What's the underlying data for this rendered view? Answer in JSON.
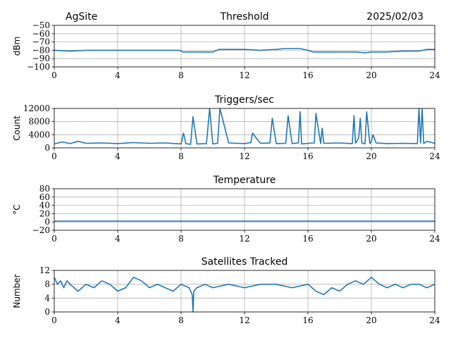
{
  "header": {
    "site": "AgSite",
    "date": "2025/02/03"
  },
  "colors": {
    "series": "#1f77b4",
    "grid": "#b0b0b0"
  },
  "chart_data": [
    {
      "type": "line",
      "title": "Threshold",
      "ylabel": "dBm",
      "xlim": [
        0,
        24
      ],
      "ylim": [
        -100,
        -50
      ],
      "xticks": [
        0,
        4,
        8,
        12,
        16,
        20,
        24
      ],
      "yticks": [
        -100,
        -90,
        -80,
        -70,
        -60,
        -50
      ],
      "grid": true,
      "series": [
        {
          "x": [
            0,
            1,
            2,
            3,
            4,
            5,
            6,
            7,
            7.9,
            8.1,
            9,
            10,
            10.4,
            11,
            12,
            13,
            14,
            14.5,
            15,
            15.5,
            16,
            16.3,
            17,
            18,
            19,
            19.6,
            20,
            21,
            22,
            23,
            23.5,
            24
          ],
          "y": [
            -80,
            -81,
            -80,
            -80,
            -80,
            -80,
            -80,
            -80,
            -80,
            -82,
            -82,
            -82,
            -79,
            -79,
            -79,
            -80,
            -79,
            -78,
            -78,
            -78,
            -80,
            -82,
            -82,
            -82,
            -82,
            -83,
            -82,
            -82,
            -81,
            -81,
            -79,
            -79
          ]
        }
      ]
    },
    {
      "type": "line",
      "title": "Triggers/sec",
      "ylabel": "Count",
      "xlim": [
        0,
        24
      ],
      "ylim": [
        0,
        12000
      ],
      "xticks": [
        0,
        4,
        8,
        12,
        16,
        20,
        24
      ],
      "yticks": [
        0,
        4000,
        8000,
        12000
      ],
      "grid": true,
      "series": [
        {
          "x": [
            0,
            0.5,
            1,
            1.5,
            2,
            3,
            4,
            5,
            6,
            7,
            8,
            8.15,
            8.3,
            8.6,
            8.75,
            9,
            9.6,
            9.8,
            10,
            10.3,
            10.45,
            11,
            12,
            12.4,
            12.5,
            13,
            13.6,
            13.75,
            14,
            14.6,
            14.75,
            15,
            15.4,
            15.5,
            15.6,
            16,
            16.4,
            16.5,
            16.8,
            16.9,
            17,
            18,
            18.8,
            18.9,
            19,
            19.2,
            19.3,
            19.4,
            19.6,
            19.7,
            19.9,
            20,
            20.1,
            20.3,
            21,
            22,
            22.9,
            23,
            23.1,
            23.2,
            23.3,
            23.5,
            24
          ],
          "y": [
            1200,
            1800,
            1300,
            2000,
            1400,
            1500,
            1300,
            1600,
            1400,
            1500,
            1200,
            4500,
            1300,
            1100,
            9500,
            1200,
            1300,
            12000,
            1200,
            1400,
            12000,
            1500,
            1300,
            1600,
            4500,
            1400,
            1500,
            9000,
            1300,
            1400,
            9800,
            1300,
            1500,
            11000,
            1200,
            1400,
            1500,
            10500,
            1300,
            6000,
            1400,
            1500,
            1300,
            9800,
            1400,
            3000,
            9000,
            1500,
            1200,
            11000,
            1300,
            2000,
            4000,
            1500,
            1300,
            1400,
            1300,
            12000,
            1500,
            12000,
            1300,
            2000,
            1400
          ]
        }
      ]
    },
    {
      "type": "line",
      "title": "Temperature",
      "ylabel": "°C",
      "xlim": [
        0,
        24
      ],
      "ylim": [
        -20,
        80
      ],
      "xticks": [
        0,
        4,
        8,
        12,
        16,
        20,
        24
      ],
      "yticks": [
        -20,
        0,
        20,
        40,
        60,
        80
      ],
      "grid": true,
      "series": [
        {
          "x": [
            0,
            24
          ],
          "y": [
            2,
            2
          ]
        }
      ]
    },
    {
      "type": "line",
      "title": "Satellites Tracked",
      "ylabel": "Number",
      "xlim": [
        0,
        24
      ],
      "ylim": [
        0,
        12
      ],
      "xticks": [
        0,
        4,
        8,
        12,
        16,
        20,
        24
      ],
      "yticks": [
        0,
        4,
        8,
        12
      ],
      "grid": true,
      "series": [
        {
          "x": [
            0,
            0.2,
            0.4,
            0.6,
            0.8,
            1,
            1.5,
            2,
            2.5,
            3,
            3.5,
            4,
            4.5,
            5,
            5.5,
            6,
            6.5,
            7,
            7.5,
            8,
            8.5,
            8.7,
            8.75,
            8.8,
            9,
            9.5,
            10,
            11,
            12,
            13,
            14,
            15,
            16,
            16.5,
            17,
            17.5,
            18,
            18.5,
            19,
            19.5,
            20,
            20.5,
            21,
            21.5,
            22,
            22.5,
            23,
            23.5,
            24
          ],
          "y": [
            10,
            8,
            9,
            7,
            9,
            8,
            6,
            8,
            7,
            9,
            8,
            6,
            7,
            10,
            9,
            7,
            8,
            7,
            6,
            8,
            7,
            5,
            0,
            6,
            7,
            8,
            7,
            8,
            7,
            8,
            8,
            7,
            8,
            6,
            5,
            7,
            6,
            8,
            9,
            8,
            10,
            8,
            7,
            8,
            7,
            8,
            8,
            7,
            8
          ]
        }
      ]
    }
  ]
}
